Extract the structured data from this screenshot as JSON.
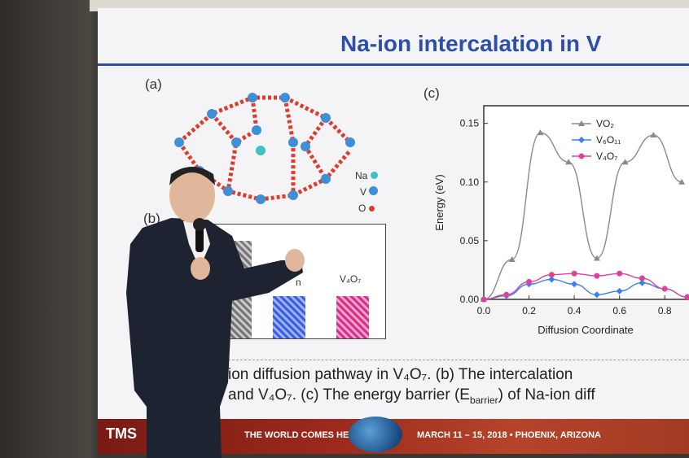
{
  "slide": {
    "title": "Na-ion intercalation in V",
    "panel_a_label": "(a)",
    "panel_b_label": "(b)",
    "panel_c_label": "(c)",
    "legend_na": "Na",
    "legend_v": "V",
    "legend_o": "O",
    "bar_label_main": "V₄O₇",
    "bar_label_partial": "n",
    "caption_line1": "ion diffusion pathway in V₄O₇. (b) The intercalation",
    "caption_line2": "and V₄O₇. (c) The energy barrier (E",
    "caption_sub": "barrier",
    "caption_line2_end": ") of Na-ion diff",
    "banner_tms": "TMS",
    "banner_slogan": "THE WORLD COMES HERE.",
    "banner_dates": "MARCH 11 – 15, 2018 • PHOENIX, ARIZONA"
  },
  "colors": {
    "title": "#2d4fa8",
    "vo2": "#8a8a8a",
    "v6o11": "#3a7ff0",
    "v4o7": "#e0409a"
  },
  "chart_data": {
    "type": "line",
    "xlabel": "Diffusion Coordinate",
    "ylabel": "Energy (eV)",
    "xlim": [
      0.0,
      0.9
    ],
    "ylim": [
      0.0,
      0.165
    ],
    "xticks": [
      "0.0",
      "0.2",
      "0.4",
      "0.6",
      "0.8"
    ],
    "yticks": [
      "0.00",
      "0.05",
      "0.10",
      "0.15"
    ],
    "legend_position": "top-right",
    "series": [
      {
        "name": "VO₂",
        "marker": "triangle",
        "x": [
          0.0,
          0.125,
          0.25,
          0.375,
          0.5,
          0.625,
          0.75,
          0.875
        ],
        "y": [
          0.0,
          0.034,
          0.142,
          0.117,
          0.035,
          0.117,
          0.14,
          0.1
        ]
      },
      {
        "name": "V₆O₁₁",
        "marker": "diamond",
        "x": [
          0.0,
          0.1,
          0.2,
          0.3,
          0.4,
          0.5,
          0.6,
          0.7,
          0.8,
          0.9
        ],
        "y": [
          0.0,
          0.003,
          0.013,
          0.017,
          0.013,
          0.004,
          0.007,
          0.014,
          0.009,
          0.002
        ]
      },
      {
        "name": "V₄O₇",
        "marker": "circle",
        "x": [
          0.0,
          0.1,
          0.2,
          0.3,
          0.4,
          0.5,
          0.6,
          0.7,
          0.8,
          0.9
        ],
        "y": [
          0.0,
          0.004,
          0.015,
          0.021,
          0.022,
          0.02,
          0.022,
          0.018,
          0.009,
          0.002
        ]
      }
    ]
  }
}
